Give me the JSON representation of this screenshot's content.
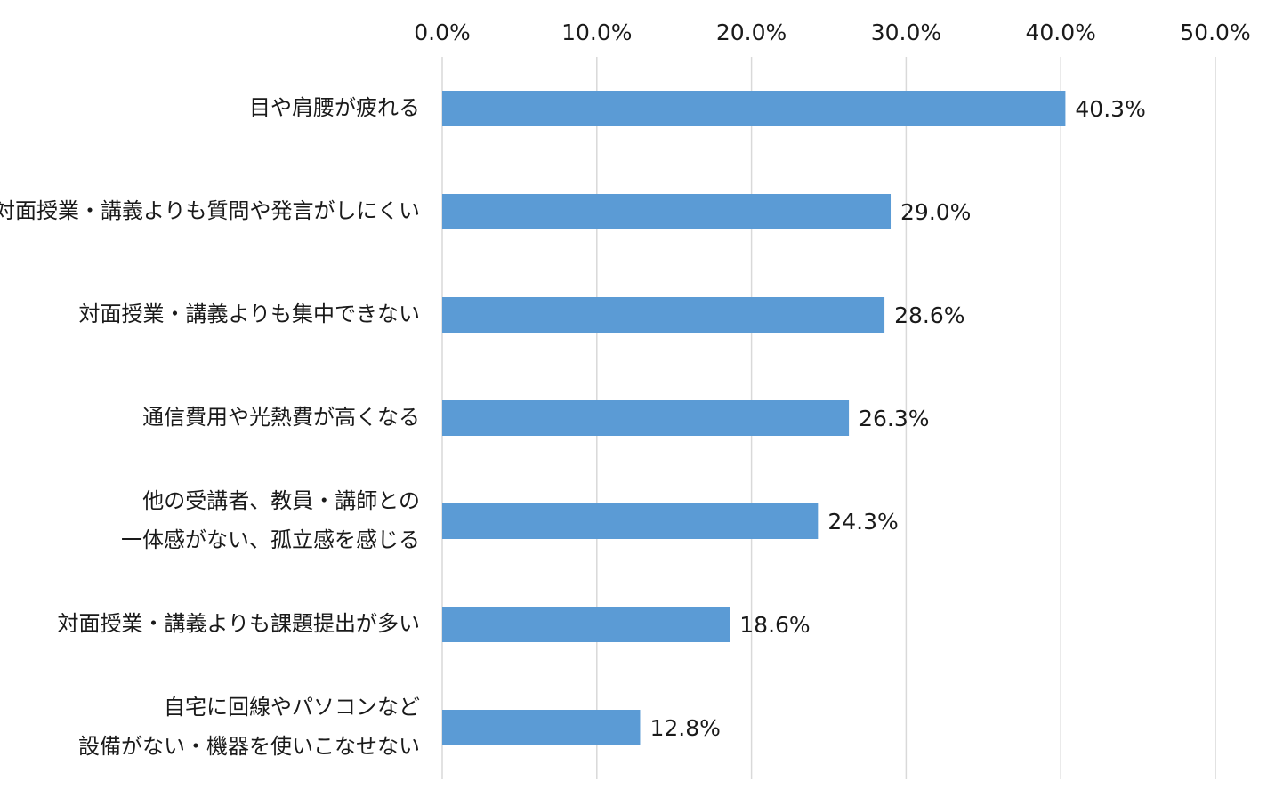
{
  "chart_data": {
    "type": "bar",
    "orientation": "horizontal",
    "categories": [
      [
        "目や肩腰が疲れる"
      ],
      [
        "対面授業・講義よりも質問や発言がしにくい"
      ],
      [
        "対面授業・講義よりも集中できない"
      ],
      [
        "通信費用や光熱費が高くなる"
      ],
      [
        "他の受講者、教員・講師との",
        "一体感がない、孤立感を感じる"
      ],
      [
        "対面授業・講義よりも課題提出が多い"
      ],
      [
        "自宅に回線やパソコンなど",
        "設備がない・機器を使いこなせない"
      ]
    ],
    "values": [
      40.3,
      29.0,
      28.6,
      26.3,
      24.3,
      18.6,
      12.8
    ],
    "data_labels": [
      "40.3%",
      "29.0%",
      "28.6%",
      "26.3%",
      "24.3%",
      "18.6%",
      "12.8%"
    ],
    "xlim": [
      0,
      50
    ],
    "xticks": [
      0,
      10,
      20,
      30,
      40,
      50
    ],
    "xtick_labels": [
      "0.0%",
      "10.0%",
      "20.0%",
      "30.0%",
      "40.0%",
      "50.0%"
    ],
    "axis_position": "top",
    "grid": true,
    "legend": "none",
    "bar_color": "#5b9bd5",
    "grid_color": "#d9d9d9"
  }
}
